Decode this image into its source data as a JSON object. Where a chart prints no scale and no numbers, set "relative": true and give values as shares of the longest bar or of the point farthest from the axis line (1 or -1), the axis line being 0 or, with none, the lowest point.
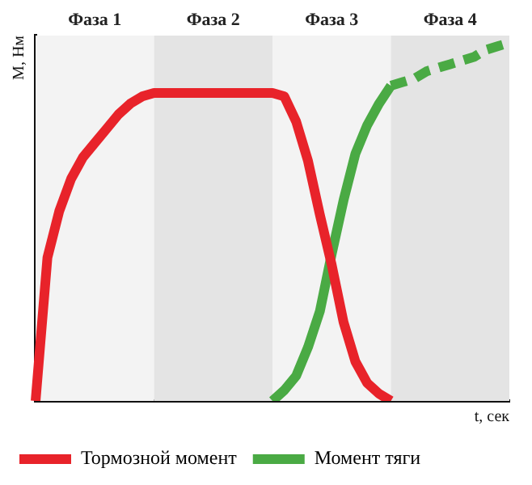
{
  "chart_data": {
    "type": "line",
    "relative": true,
    "xlabel": "t, сек",
    "ylabel": "М, Нм",
    "legend": "bottom",
    "marker": "none",
    "line_style": "solid",
    "annotations": [
      "Фаза 1",
      "Фаза 2",
      "Фаза 3",
      "Фаза 4"
    ],
    "categories": [
      null,
      null,
      null,
      null,
      null,
      null,
      null,
      null,
      null,
      null,
      null,
      null,
      null,
      null,
      null,
      null,
      null,
      null,
      null,
      null,
      null,
      null,
      null,
      null,
      null,
      null,
      null,
      null,
      null,
      null,
      null,
      null,
      null,
      null,
      null,
      null,
      null,
      null,
      null,
      null,
      null
    ],
    "series": [
      {
        "name": "Тормозной момент",
        "color": "#e8232a",
        "values": [
          0,
          0.4,
          0.53,
          0.62,
          0.68,
          0.72,
          0.76,
          0.8,
          0.83,
          0.85,
          0.86,
          0.86,
          0.86,
          0.86,
          0.86,
          0.86,
          0.86,
          0.86,
          0.86,
          0.86,
          0.86,
          0.85,
          0.78,
          0.67,
          0.52,
          0.38,
          0.22,
          0.11,
          0.05,
          0.02,
          0,
          null,
          null,
          null,
          null,
          null,
          null,
          null,
          null,
          null,
          null
        ]
      },
      {
        "name": "Момент тяги",
        "color": "#4aaa44",
        "values": [
          null,
          null,
          null,
          null,
          null,
          null,
          null,
          null,
          null,
          null,
          null,
          null,
          null,
          null,
          null,
          null,
          null,
          null,
          null,
          null,
          0,
          0.03,
          0.07,
          0.15,
          0.25,
          0.41,
          0.56,
          0.69,
          0.77,
          0.83,
          0.88,
          null,
          null,
          null,
          null,
          null,
          null,
          null,
          null,
          null,
          null
        ]
      },
      {
        "color": "#4aaa44",
        "line_style": "dashed",
        "values": [
          null,
          null,
          null,
          null,
          null,
          null,
          null,
          null,
          null,
          null,
          null,
          null,
          null,
          null,
          null,
          null,
          null,
          null,
          null,
          null,
          null,
          null,
          null,
          null,
          null,
          null,
          null,
          null,
          null,
          null,
          0.88,
          0.89,
          0.9,
          0.92,
          0.93,
          0.94,
          0.95,
          0.96,
          0.98,
          0.99,
          1
        ]
      }
    ]
  }
}
